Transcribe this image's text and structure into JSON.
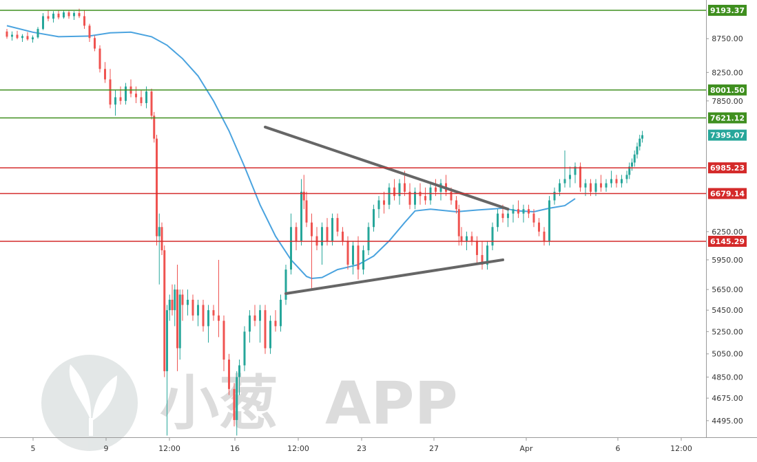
{
  "colors": {
    "up": "#26a69a",
    "down": "#ef5350",
    "ma": "#4aa3df",
    "support_line": "#d42a2a",
    "resistance_line": "#3f8f1f",
    "trendline": "#666666",
    "current_price_tag": "#26a69a"
  },
  "watermark": {
    "icon": "leaf-logo-icon",
    "brand_cn": "小葱",
    "brand_en": "APP"
  },
  "chart_data": {
    "type": "candlestick",
    "title": "",
    "xlabel": "",
    "ylabel": "",
    "ylim": [
      4380,
      9450
    ],
    "log_scale": true,
    "grid": false,
    "x_ticks": [
      "5",
      "9",
      "12:00",
      "16",
      "12:00",
      "23",
      "27",
      "Apr",
      "6",
      "12:00"
    ],
    "y_ticks": [
      "8750.00",
      "8250.00",
      "7850.00",
      "6250.00",
      "5950.00",
      "5650.00",
      "5450.00",
      "5250.00",
      "5050.00",
      "4850.00",
      "4675.00",
      "4495.00"
    ],
    "current_price": "7395.07",
    "resistance_levels": [
      "9193.37",
      "8001.50",
      "7621.12"
    ],
    "support_levels": [
      "6985.23",
      "6679.14",
      "6145.29"
    ],
    "moving_average": [
      [
        0,
        8950
      ],
      [
        10,
        8850
      ],
      [
        20,
        8780
      ],
      [
        32,
        8790
      ],
      [
        40,
        8840
      ],
      [
        48,
        8850
      ],
      [
        56,
        8780
      ],
      [
        62,
        8650
      ],
      [
        68,
        8450
      ],
      [
        74,
        8200
      ],
      [
        80,
        7850
      ],
      [
        86,
        7450
      ],
      [
        92,
        7000
      ],
      [
        98,
        6550
      ],
      [
        104,
        6200
      ],
      [
        110,
        5950
      ],
      [
        116,
        5780
      ],
      [
        118,
        5760
      ],
      [
        122,
        5770
      ],
      [
        128,
        5850
      ],
      [
        136,
        5900
      ],
      [
        142,
        5990
      ],
      [
        148,
        6150
      ],
      [
        154,
        6350
      ],
      [
        158,
        6480
      ],
      [
        164,
        6500
      ],
      [
        174,
        6470
      ],
      [
        182,
        6490
      ],
      [
        192,
        6510
      ],
      [
        198,
        6480
      ],
      [
        204,
        6470
      ],
      [
        210,
        6510
      ],
      [
        216,
        6540
      ],
      [
        220,
        6620
      ]
    ],
    "trendlines": [
      {
        "name": "upper",
        "points": [
          [
            100,
            7500
          ],
          [
            194,
            6500
          ]
        ]
      },
      {
        "name": "lower",
        "points": [
          [
            108,
            5610
          ],
          [
            192,
            5950
          ]
        ]
      }
    ],
    "candles": [
      [
        0,
        8860,
        8900,
        8750,
        8780
      ],
      [
        2,
        8780,
        8860,
        8720,
        8810
      ],
      [
        4,
        8810,
        8870,
        8740,
        8760
      ],
      [
        6,
        8760,
        8820,
        8700,
        8790
      ],
      [
        8,
        8790,
        8850,
        8720,
        8740
      ],
      [
        10,
        8740,
        8800,
        8690,
        8770
      ],
      [
        12,
        8770,
        8930,
        8750,
        8900
      ],
      [
        14,
        8900,
        9150,
        8880,
        9100
      ],
      [
        16,
        9100,
        9200,
        9020,
        9060
      ],
      [
        18,
        9060,
        9180,
        9000,
        9140
      ],
      [
        20,
        9140,
        9190,
        9050,
        9080
      ],
      [
        22,
        9080,
        9190,
        9060,
        9160
      ],
      [
        24,
        9160,
        9190,
        9060,
        9100
      ],
      [
        26,
        9100,
        9180,
        9040,
        9150
      ],
      [
        28,
        9150,
        9220,
        9070,
        9100
      ],
      [
        30,
        9100,
        9200,
        8900,
        8950
      ],
      [
        32,
        8950,
        8980,
        8700,
        8760
      ],
      [
        34,
        8760,
        8800,
        8560,
        8600
      ],
      [
        36,
        8600,
        8650,
        8250,
        8300
      ],
      [
        38,
        8300,
        8400,
        8100,
        8150
      ],
      [
        40,
        8150,
        8300,
        7750,
        7800
      ],
      [
        42,
        7800,
        8000,
        7650,
        7900
      ],
      [
        44,
        7900,
        8050,
        7800,
        7850
      ],
      [
        46,
        7850,
        8100,
        7800,
        8050
      ],
      [
        48,
        8050,
        8150,
        7900,
        7950
      ],
      [
        50,
        7950,
        8050,
        7820,
        7900
      ],
      [
        52,
        7900,
        8000,
        7780,
        7820
      ],
      [
        54,
        7820,
        8050,
        7750,
        7980
      ],
      [
        56,
        7980,
        8020,
        7600,
        7650
      ],
      [
        57,
        7650,
        7700,
        7300,
        7350
      ],
      [
        58,
        7350,
        7400,
        6100,
        6200
      ],
      [
        59,
        6200,
        6450,
        5700,
        6300
      ],
      [
        60,
        6300,
        6350,
        6000,
        6050
      ],
      [
        61,
        6050,
        6100,
        4850,
        4900
      ],
      [
        62,
        4900,
        5500,
        4380,
        5450
      ],
      [
        63,
        5450,
        5600,
        5350,
        5550
      ],
      [
        64,
        5550,
        5700,
        5400,
        5450
      ],
      [
        65,
        5450,
        5700,
        5300,
        5650
      ],
      [
        66,
        5650,
        5900,
        4900,
        5100
      ],
      [
        67,
        5100,
        5650,
        5000,
        5600
      ],
      [
        68,
        5600,
        5650,
        5350,
        5500
      ],
      [
        70,
        5500,
        5650,
        5400,
        5550
      ],
      [
        72,
        5550,
        5600,
        5350,
        5400
      ],
      [
        74,
        5400,
        5550,
        5300,
        5500
      ],
      [
        76,
        5500,
        5550,
        5250,
        5300
      ],
      [
        78,
        5300,
        5500,
        5150,
        5450
      ],
      [
        80,
        5450,
        5500,
        5350,
        5400
      ],
      [
        82,
        5400,
        5950,
        5200,
        5350
      ],
      [
        84,
        5350,
        5400,
        4900,
        5000
      ],
      [
        86,
        5000,
        5050,
        4700,
        4750
      ],
      [
        88,
        4750,
        4800,
        4450,
        4500
      ],
      [
        89,
        4500,
        4900,
        4380,
        4850
      ],
      [
        90,
        4850,
        5000,
        4700,
        4950
      ],
      [
        92,
        4950,
        5300,
        4900,
        5250
      ],
      [
        94,
        5250,
        5450,
        5150,
        5400
      ],
      [
        96,
        5400,
        5500,
        5300,
        5350
      ],
      [
        98,
        5350,
        5500,
        5150,
        5450
      ],
      [
        100,
        5450,
        5500,
        5050,
        5100
      ],
      [
        102,
        5100,
        5400,
        5050,
        5350
      ],
      [
        104,
        5350,
        5450,
        5250,
        5300
      ],
      [
        106,
        5300,
        5600,
        5250,
        5550
      ],
      [
        108,
        5550,
        5900,
        5500,
        5850
      ],
      [
        110,
        5850,
        6450,
        5800,
        6300
      ],
      [
        112,
        6300,
        6350,
        6050,
        6150
      ],
      [
        114,
        6150,
        6850,
        6100,
        6700
      ],
      [
        115,
        6700,
        6900,
        6500,
        6600
      ],
      [
        116,
        6600,
        6700,
        6300,
        6350
      ],
      [
        118,
        6350,
        6450,
        5650,
        6200
      ],
      [
        120,
        6200,
        6300,
        6050,
        6100
      ],
      [
        122,
        6100,
        6350,
        5900,
        6300
      ],
      [
        124,
        6300,
        6400,
        6100,
        6150
      ],
      [
        126,
        6150,
        6450,
        6100,
        6400
      ],
      [
        128,
        6400,
        6450,
        6200,
        6250
      ],
      [
        130,
        6250,
        6300,
        6100,
        6150
      ],
      [
        132,
        6150,
        6200,
        5850,
        5900
      ],
      [
        134,
        5900,
        6150,
        5800,
        6100
      ],
      [
        136,
        6100,
        6200,
        5750,
        5850
      ],
      [
        138,
        5850,
        6100,
        5800,
        6050
      ],
      [
        140,
        6050,
        6350,
        6000,
        6300
      ],
      [
        142,
        6300,
        6550,
        6250,
        6500
      ],
      [
        144,
        6500,
        6650,
        6400,
        6600
      ],
      [
        146,
        6600,
        6700,
        6450,
        6550
      ],
      [
        148,
        6550,
        6800,
        6500,
        6750
      ],
      [
        150,
        6750,
        6850,
        6600,
        6650
      ],
      [
        152,
        6650,
        6850,
        6550,
        6800
      ],
      [
        154,
        6800,
        6950,
        6650,
        6700
      ],
      [
        156,
        6700,
        6800,
        6500,
        6550
      ],
      [
        158,
        6550,
        6750,
        6500,
        6700
      ],
      [
        160,
        6700,
        6800,
        6550,
        6650
      ],
      [
        162,
        6650,
        6750,
        6550,
        6600
      ],
      [
        164,
        6600,
        6800,
        6550,
        6750
      ],
      [
        166,
        6750,
        6850,
        6650,
        6700
      ],
      [
        168,
        6700,
        6850,
        6600,
        6800
      ],
      [
        170,
        6800,
        6900,
        6650,
        6700
      ],
      [
        172,
        6700,
        6750,
        6550,
        6600
      ],
      [
        174,
        6600,
        6650,
        6450,
        6500
      ],
      [
        175,
        6500,
        6550,
        6100,
        6200
      ],
      [
        176,
        6200,
        6300,
        6100,
        6150
      ],
      [
        178,
        6150,
        6250,
        6050,
        6200
      ],
      [
        180,
        6200,
        6250,
        6100,
        6150
      ],
      [
        182,
        6150,
        6200,
        5900,
        6000
      ],
      [
        184,
        6000,
        6150,
        5850,
        5900
      ],
      [
        186,
        5900,
        6150,
        5850,
        6100
      ],
      [
        188,
        6100,
        6350,
        6050,
        6300
      ],
      [
        190,
        6300,
        6500,
        6250,
        6450
      ],
      [
        192,
        6450,
        6550,
        6350,
        6400
      ],
      [
        194,
        6400,
        6500,
        6300,
        6450
      ],
      [
        196,
        6450,
        6550,
        6350,
        6500
      ],
      [
        198,
        6500,
        6600,
        6400,
        6450
      ],
      [
        200,
        6450,
        6550,
        6350,
        6500
      ],
      [
        202,
        6500,
        6550,
        6400,
        6450
      ],
      [
        204,
        6450,
        6500,
        6300,
        6350
      ],
      [
        206,
        6350,
        6400,
        6200,
        6250
      ],
      [
        208,
        6250,
        6300,
        6100,
        6150
      ],
      [
        210,
        6150,
        6650,
        6100,
        6600
      ],
      [
        212,
        6600,
        6750,
        6550,
        6700
      ],
      [
        214,
        6700,
        6850,
        6650,
        6800
      ],
      [
        216,
        6800,
        7200,
        6750,
        6850
      ],
      [
        218,
        6850,
        7000,
        6750,
        6900
      ],
      [
        220,
        6900,
        7050,
        6800,
        7000
      ],
      [
        222,
        7000,
        7050,
        6700,
        6750
      ],
      [
        224,
        6750,
        6850,
        6650,
        6800
      ],
      [
        226,
        6800,
        6850,
        6650,
        6700
      ],
      [
        228,
        6700,
        6850,
        6650,
        6800
      ],
      [
        230,
        6800,
        6900,
        6700,
        6750
      ],
      [
        232,
        6750,
        6850,
        6700,
        6800
      ],
      [
        234,
        6800,
        6950,
        6750,
        6850
      ],
      [
        236,
        6850,
        6900,
        6750,
        6800
      ],
      [
        238,
        6800,
        6900,
        6750,
        6850
      ],
      [
        240,
        6850,
        6950,
        6800,
        6900
      ],
      [
        241,
        6900,
        7050,
        6850,
        7000
      ],
      [
        242,
        7000,
        7100,
        6950,
        7050
      ],
      [
        243,
        7050,
        7200,
        7000,
        7150
      ],
      [
        244,
        7150,
        7300,
        7100,
        7250
      ],
      [
        245,
        7250,
        7400,
        7200,
        7350
      ],
      [
        246,
        7350,
        7450,
        7300,
        7395.07
      ]
    ]
  }
}
